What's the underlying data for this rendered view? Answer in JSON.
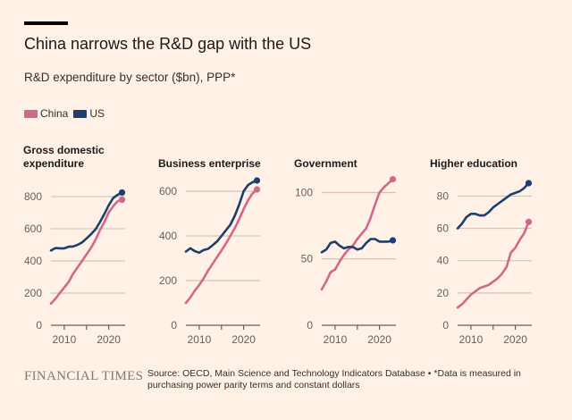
{
  "header": {
    "title": "China narrows the R&D gap with the US",
    "subtitle": "R&D expenditure by sector ($bn), PPP*"
  },
  "legend": [
    {
      "name": "China",
      "color": "#d1688c"
    },
    {
      "name": "US",
      "color": "#1d3f6e"
    }
  ],
  "chart_data": [
    {
      "type": "line",
      "title": [
        "Gross domestic",
        "expenditure"
      ],
      "x": [
        2007,
        2008,
        2009,
        2010,
        2011,
        2012,
        2013,
        2014,
        2015,
        2016,
        2017,
        2018,
        2019,
        2020,
        2021,
        2022,
        2023
      ],
      "series": [
        {
          "name": "China",
          "values": [
            135,
            165,
            200,
            235,
            270,
            320,
            360,
            400,
            440,
            480,
            530,
            590,
            640,
            700,
            740,
            770,
            780
          ]
        },
        {
          "name": "US",
          "values": [
            465,
            480,
            478,
            478,
            488,
            490,
            500,
            515,
            540,
            565,
            595,
            640,
            690,
            745,
            790,
            810,
            825
          ]
        }
      ],
      "yticks": [
        0,
        200,
        400,
        600,
        800
      ],
      "ylim": [
        0,
        833
      ],
      "xticks": [
        2010,
        2020
      ],
      "xlim": [
        2007,
        2023.5
      ],
      "grid": true
    },
    {
      "type": "line",
      "title": [
        "Business enterprise"
      ],
      "x": [
        2007,
        2008,
        2009,
        2010,
        2011,
        2012,
        2013,
        2014,
        2015,
        2016,
        2017,
        2018,
        2019,
        2020,
        2021,
        2022,
        2023
      ],
      "series": [
        {
          "name": "China",
          "values": [
            100,
            125,
            155,
            180,
            210,
            245,
            275,
            305,
            335,
            365,
            400,
            435,
            475,
            520,
            560,
            590,
            608
          ]
        },
        {
          "name": "US",
          "values": [
            330,
            345,
            332,
            325,
            337,
            342,
            358,
            375,
            400,
            425,
            450,
            490,
            540,
            600,
            628,
            640,
            648
          ]
        }
      ],
      "yticks": [
        0,
        200,
        400,
        600
      ],
      "ylim": [
        0,
        600
      ],
      "xticks": [
        2010,
        2020
      ],
      "xlim": [
        2007,
        2023.5
      ],
      "grid": true
    },
    {
      "type": "line",
      "title": [
        "Government"
      ],
      "x": [
        2007,
        2008,
        2009,
        2010,
        2011,
        2012,
        2013,
        2014,
        2015,
        2016,
        2017,
        2018,
        2019,
        2020,
        2021,
        2022,
        2023
      ],
      "series": [
        {
          "name": "China",
          "values": [
            27,
            33,
            40,
            42,
            48,
            53,
            57,
            60,
            65,
            69,
            73,
            81,
            91,
            100,
            104,
            107,
            110
          ]
        },
        {
          "name": "US",
          "values": [
            55,
            57,
            62,
            63,
            60,
            58,
            59,
            59,
            57,
            58,
            62,
            65,
            65,
            63,
            63,
            63,
            64
          ]
        }
      ],
      "yticks": [
        0,
        50,
        100
      ],
      "ylim": [
        0,
        101
      ],
      "xticks": [
        2010,
        2020
      ],
      "xlim": [
        2007,
        2023.5
      ],
      "grid": true
    },
    {
      "type": "line",
      "title": [
        "Higher education"
      ],
      "x": [
        2007,
        2008,
        2009,
        2010,
        2011,
        2012,
        2013,
        2014,
        2015,
        2016,
        2017,
        2018,
        2019,
        2020,
        2021,
        2022,
        2023
      ],
      "series": [
        {
          "name": "China",
          "values": [
            11,
            13,
            16,
            19,
            21,
            23,
            24,
            25,
            27,
            29,
            32,
            36,
            45,
            48,
            53,
            57,
            64
          ]
        },
        {
          "name": "US",
          "values": [
            60,
            63,
            67,
            69,
            69,
            68,
            68,
            70,
            73,
            75,
            77,
            79,
            81,
            82,
            83,
            85,
            88
          ]
        }
      ],
      "yticks": [
        0,
        20,
        40,
        60,
        80
      ],
      "ylim": [
        0,
        83
      ],
      "xticks": [
        2010,
        2020
      ],
      "xlim": [
        2007,
        2023.5
      ],
      "grid": true
    }
  ],
  "footer": {
    "logo": "FINANCIAL TIMES",
    "source": "Source: OECD, Main Science and Technology Indicators Database • *Data is measured in purchasing power parity terms and constant dollars"
  }
}
